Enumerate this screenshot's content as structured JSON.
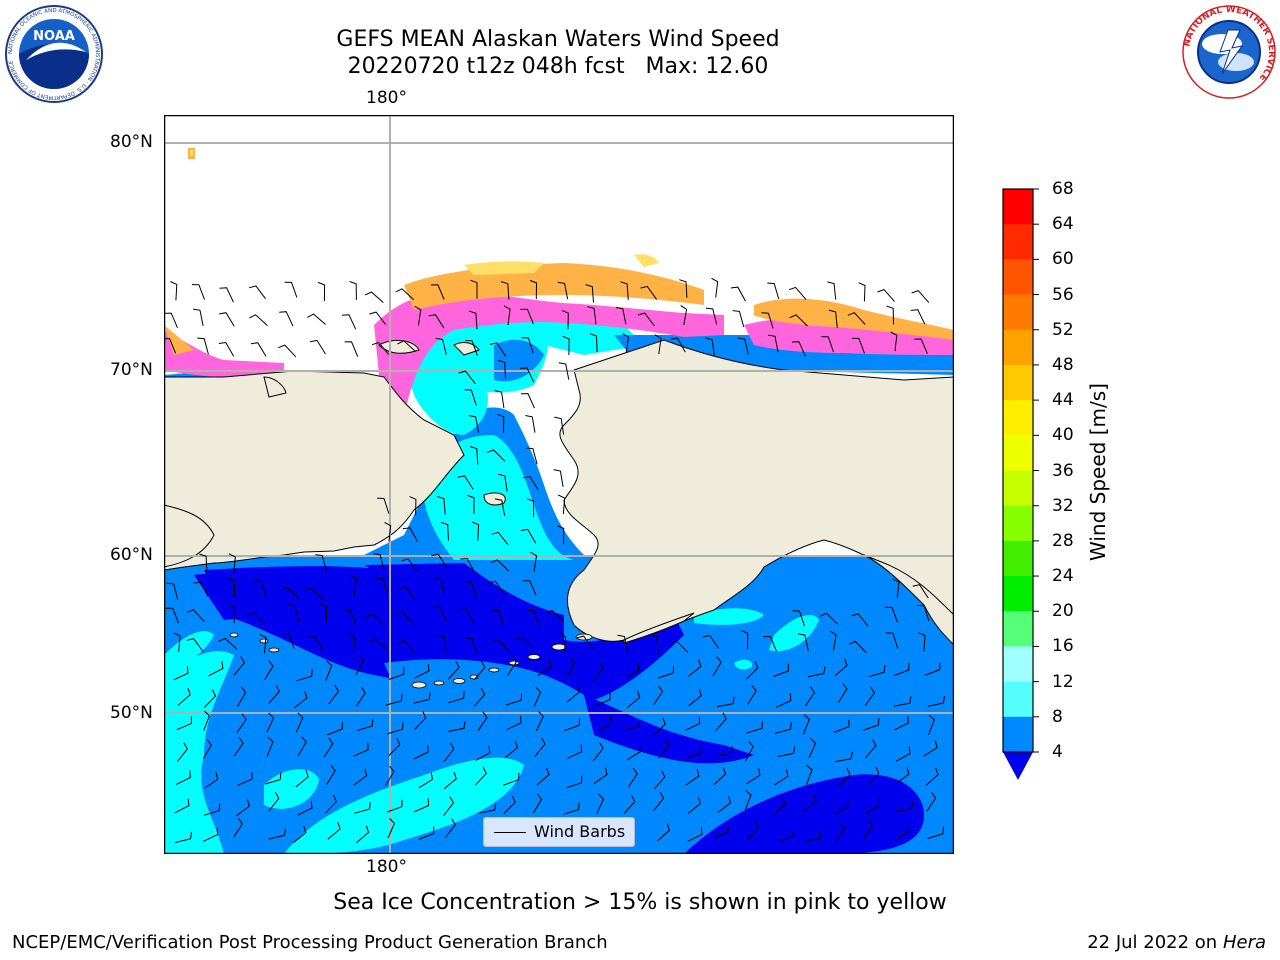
{
  "header": {
    "title_line1": "GEFS MEAN Alaskan Waters Wind Speed",
    "title_line2": "20220720 t12z 048h fcst   Max: 12.60"
  },
  "logos": {
    "left": {
      "name": "noaa-logo",
      "text": "NOAA",
      "ring_text": "NATIONAL OCEANIC AND ATMOSPHERIC ADMINISTRATION · U.S. DEPARTMENT OF COMMERCE"
    },
    "right": {
      "name": "nws-logo",
      "ring_text": "NATIONAL WEATHER SERVICE"
    }
  },
  "map": {
    "lon_label_top": "180°",
    "lon_label_bottom": "180°",
    "lat_labels": [
      "80°N",
      "70°N",
      "60°N",
      "50°N"
    ],
    "legend_label": "Wind Barbs",
    "colors": {
      "land": "#efecdc",
      "ice_pink": "#ff66dd",
      "ice_orange": "#ffb347",
      "ice_yellow": "#ffe066"
    }
  },
  "colorbar": {
    "label": "Wind Speed [m/s]",
    "ticks": [
      "68",
      "64",
      "60",
      "56",
      "52",
      "48",
      "44",
      "40",
      "36",
      "32",
      "28",
      "24",
      "20",
      "16",
      "12",
      "8",
      "4"
    ],
    "colors": [
      "#ff0000",
      "#ff2a00",
      "#ff5500",
      "#ff7b00",
      "#ffa200",
      "#ffc800",
      "#ffee00",
      "#eeff00",
      "#c6ff00",
      "#88ff00",
      "#44ee00",
      "#00ee00",
      "#55ff77",
      "#a0ffff",
      "#55ffff",
      "#00ffff",
      "#0088ff"
    ],
    "extend_color": "#0000ee"
  },
  "footer": {
    "note": "Sea Ice Concentration > 15% is shown in pink to yellow",
    "left": "NCEP/EMC/Verification Post Processing Product Generation Branch",
    "right_date": "22 Jul 2022 on ",
    "right_host": "Hera"
  }
}
